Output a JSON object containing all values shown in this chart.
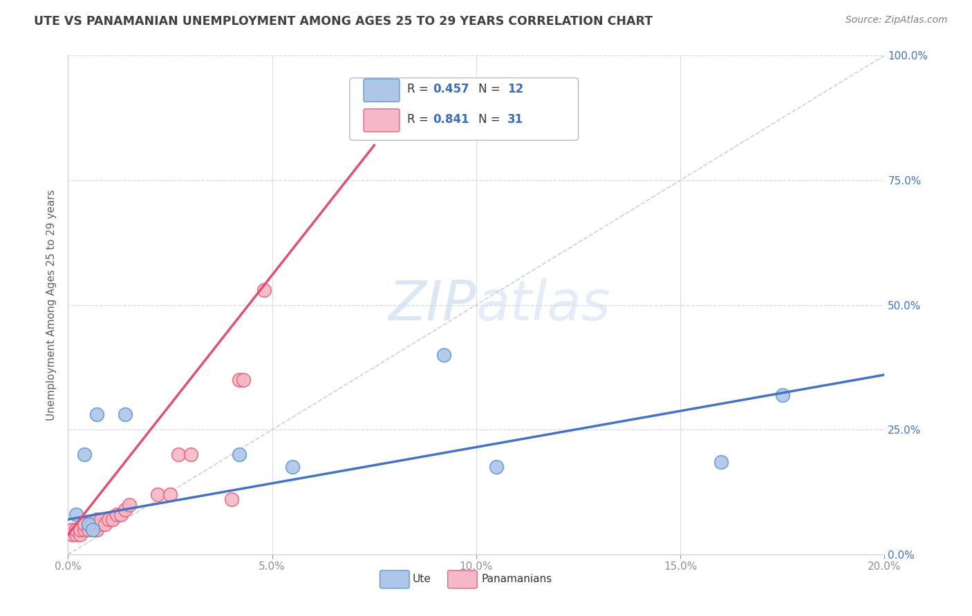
{
  "title": "UTE VS PANAMANIAN UNEMPLOYMENT AMONG AGES 25 TO 29 YEARS CORRELATION CHART",
  "source": "Source: ZipAtlas.com",
  "ylabel_label": "Unemployment Among Ages 25 to 29 years",
  "legend_ute_r": "0.457",
  "legend_ute_n": "12",
  "legend_pan_r": "0.841",
  "legend_pan_n": "31",
  "ute_color": "#aec6e8",
  "pan_color": "#f5b8c8",
  "ute_edge_color": "#5b9bd5",
  "pan_edge_color": "#e8637a",
  "ute_line_color": "#4472c4",
  "pan_line_color": "#e05070",
  "ref_line_color": "#c8d0d8",
  "background_color": "#ffffff",
  "grid_color": "#d0d8e4",
  "title_color": "#404040",
  "source_color": "#808080",
  "legend_text_color": "#333333",
  "legend_value_color": "#3a6bbf",
  "axis_label_color": "#606060",
  "tick_color": "#909090",
  "watermark_color": "#c8d8ee",
  "ute_points_x": [
    0.002,
    0.004,
    0.005,
    0.006,
    0.007,
    0.014,
    0.042,
    0.055,
    0.092,
    0.105,
    0.16,
    0.175
  ],
  "ute_points_y": [
    0.08,
    0.2,
    0.06,
    0.05,
    0.28,
    0.28,
    0.2,
    0.175,
    0.4,
    0.175,
    0.185,
    0.32
  ],
  "pan_points_x": [
    0.001,
    0.001,
    0.002,
    0.002,
    0.003,
    0.003,
    0.004,
    0.004,
    0.005,
    0.005,
    0.006,
    0.006,
    0.007,
    0.007,
    0.008,
    0.008,
    0.009,
    0.01,
    0.011,
    0.012,
    0.013,
    0.014,
    0.015,
    0.022,
    0.025,
    0.027,
    0.03,
    0.042,
    0.043,
    0.048,
    0.04
  ],
  "pan_points_y": [
    0.04,
    0.05,
    0.04,
    0.05,
    0.04,
    0.05,
    0.05,
    0.06,
    0.05,
    0.06,
    0.05,
    0.06,
    0.05,
    0.07,
    0.06,
    0.07,
    0.06,
    0.07,
    0.07,
    0.08,
    0.08,
    0.09,
    0.1,
    0.12,
    0.12,
    0.2,
    0.2,
    0.35,
    0.35,
    0.53,
    0.11
  ],
  "ute_trend_x": [
    0.0,
    0.2
  ],
  "ute_trend_y": [
    0.07,
    0.36
  ],
  "pan_trend_x": [
    0.0,
    0.075
  ],
  "pan_trend_y": [
    0.04,
    0.82
  ],
  "ref_line_x": [
    0.0,
    0.2
  ],
  "ref_line_y": [
    0.0,
    1.0
  ],
  "xlim": [
    0.0,
    0.2
  ],
  "ylim": [
    0.0,
    1.0
  ],
  "xtick_vals": [
    0.0,
    0.05,
    0.1,
    0.15,
    0.2
  ],
  "xtick_labels": [
    "0.0%",
    "5.0%",
    "10.0%",
    "15.0%",
    "20.0%"
  ],
  "ytick_vals": [
    0.0,
    0.25,
    0.5,
    0.75,
    1.0
  ],
  "ytick_labels_right": [
    "0.0%",
    "25.0%",
    "50.0%",
    "75.0%",
    "100.0%"
  ],
  "figsize": [
    14.06,
    8.92
  ],
  "dpi": 100
}
